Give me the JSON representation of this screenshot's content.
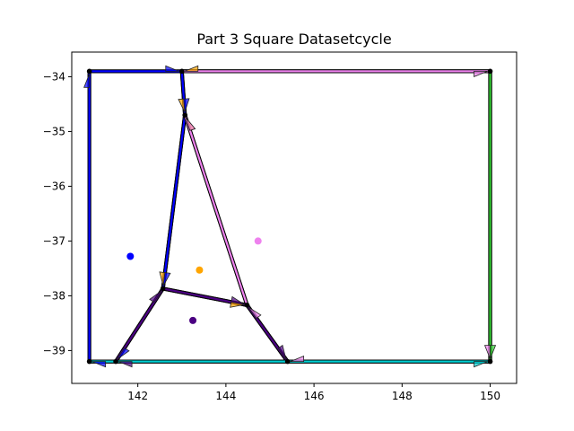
{
  "chart_data": {
    "type": "line",
    "title": "Part 3 Square Datasetcycle",
    "xlabel": "",
    "ylabel": "",
    "xlim": [
      140.5,
      150.6
    ],
    "ylim": [
      -39.6,
      -33.55
    ],
    "xticks": [
      142,
      144,
      146,
      148,
      150
    ],
    "xtick_labels": [
      "142",
      "144",
      "146",
      "148",
      "150"
    ],
    "yticks": [
      -34,
      -35,
      -36,
      -37,
      -38,
      -39
    ],
    "ytick_labels": [
      "−34",
      "−35",
      "−36",
      "−37",
      "−38",
      "−39"
    ],
    "grid": false,
    "legend": "none",
    "nodes": [
      {
        "id": "A",
        "x": 140.9,
        "y": -33.9
      },
      {
        "id": "B",
        "x": 143.0,
        "y": -33.9
      },
      {
        "id": "C",
        "x": 150.0,
        "y": -33.9
      },
      {
        "id": "D",
        "x": 143.07,
        "y": -34.7
      },
      {
        "id": "E",
        "x": 142.57,
        "y": -37.87
      },
      {
        "id": "F",
        "x": 144.48,
        "y": -38.17
      },
      {
        "id": "G",
        "x": 141.5,
        "y": -39.2
      },
      {
        "id": "H",
        "x": 140.9,
        "y": -39.2
      },
      {
        "id": "I",
        "x": 145.4,
        "y": -39.2
      },
      {
        "id": "J",
        "x": 150.0,
        "y": -39.2
      }
    ],
    "series": [
      {
        "color": "#ffa500",
        "path": [
          {
            "x": 150.0,
            "y": -33.9
          },
          {
            "x": 143.0,
            "y": -33.9
          },
          {
            "x": 143.07,
            "y": -34.7
          },
          {
            "x": 142.57,
            "y": -37.87
          },
          {
            "x": 144.48,
            "y": -38.17
          },
          {
            "x": 143.07,
            "y": -34.7
          }
        ]
      },
      {
        "color": "#0000ff",
        "path": [
          {
            "x": 140.9,
            "y": -39.2
          },
          {
            "x": 140.9,
            "y": -33.9
          },
          {
            "x": 143.0,
            "y": -33.9
          },
          {
            "x": 143.07,
            "y": -34.7
          },
          {
            "x": 142.57,
            "y": -37.87
          },
          {
            "x": 141.5,
            "y": -39.2
          },
          {
            "x": 140.9,
            "y": -39.2
          }
        ]
      },
      {
        "color": "#ee82ee",
        "path": [
          {
            "x": 143.0,
            "y": -33.9
          },
          {
            "x": 150.0,
            "y": -33.9
          },
          {
            "x": 150.0,
            "y": -39.2
          },
          {
            "x": 145.4,
            "y": -39.2
          },
          {
            "x": 144.48,
            "y": -38.17
          },
          {
            "x": 143.07,
            "y": -34.7
          }
        ]
      },
      {
        "color": "#4b0082",
        "path": [
          {
            "x": 142.57,
            "y": -37.87
          },
          {
            "x": 144.48,
            "y": -38.17
          },
          {
            "x": 145.4,
            "y": -39.2
          },
          {
            "x": 141.5,
            "y": -39.2
          },
          {
            "x": 142.57,
            "y": -37.87
          }
        ]
      },
      {
        "color": "#00ced1",
        "path": [
          {
            "x": 140.9,
            "y": -39.2
          },
          {
            "x": 150.0,
            "y": -39.2
          }
        ]
      },
      {
        "color": "#32cd32",
        "path": [
          {
            "x": 150.0,
            "y": -33.9
          },
          {
            "x": 150.0,
            "y": -39.2
          }
        ]
      }
    ],
    "centroids": [
      {
        "color": "#0000ff",
        "x": 141.83,
        "y": -37.28
      },
      {
        "color": "#ee82ee",
        "x": 144.73,
        "y": -37.0
      },
      {
        "color": "#ffa500",
        "x": 143.4,
        "y": -37.53
      },
      {
        "color": "#4b0082",
        "x": 143.25,
        "y": -38.45
      }
    ]
  }
}
